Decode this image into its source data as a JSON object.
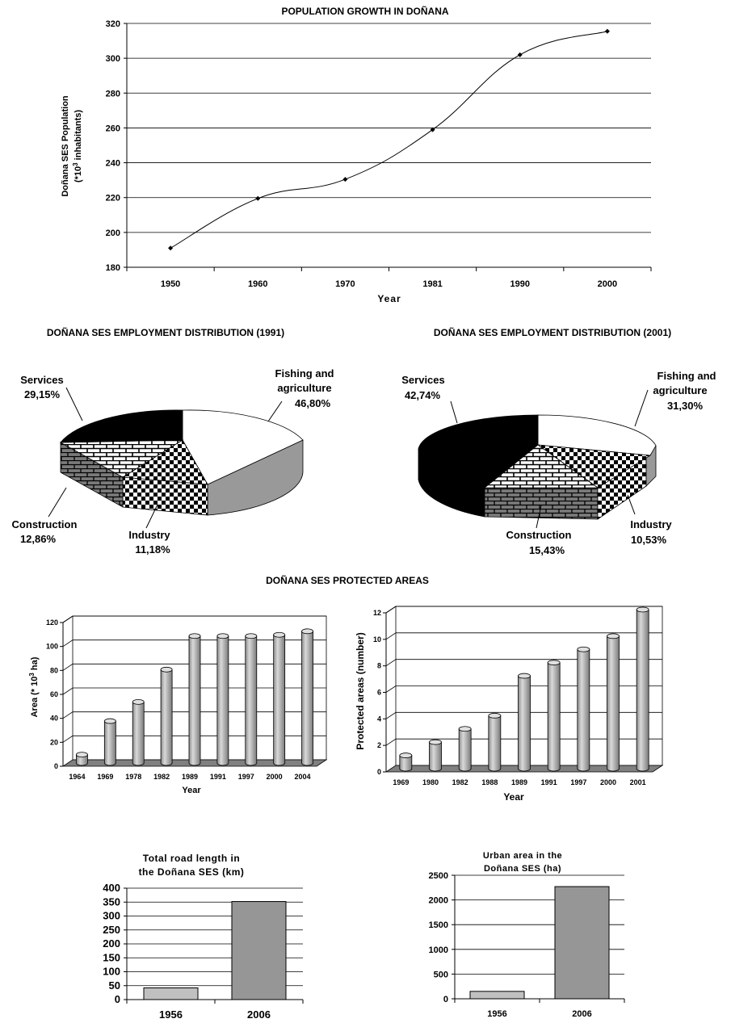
{
  "chart_data": [
    {
      "type": "line",
      "title": "POPULATION GROWTH IN DOÑANA",
      "xlabel": "Year",
      "ylabel_line1": "Doñana SES Population",
      "ylabel_line2": "(*10³ inhabitants)",
      "x": [
        "1950",
        "1960",
        "1970",
        "1981",
        "1990",
        "2000"
      ],
      "values": [
        191,
        219.5,
        230.5,
        259,
        302,
        315.5
      ],
      "ylim": [
        180,
        320
      ],
      "yticks": [
        180,
        200,
        220,
        240,
        260,
        280,
        300,
        320
      ],
      "grid": true
    },
    {
      "type": "pie",
      "title": "DOÑANA SES EMPLOYMENT DISTRIBUTION (1991)",
      "slices": [
        {
          "label": "Fishing and agriculture",
          "value": 46.8,
          "pct": "46,80%",
          "color": "#ffffff"
        },
        {
          "label": "Industry",
          "value": 11.18,
          "pct": "11,18%",
          "color": "#000000"
        },
        {
          "label": "Construction",
          "value": 12.86,
          "pct": "12,86%",
          "color": "#808080"
        },
        {
          "label": "Services",
          "value": 29.15,
          "pct": "29,15%",
          "color": "#000000"
        }
      ]
    },
    {
      "type": "pie",
      "title": "DOÑANA SES EMPLOYMENT DISTRIBUTION (2001)",
      "slices": [
        {
          "label": "Fishing and agriculture",
          "value": 31.3,
          "pct": "31,30%",
          "color": "#ffffff"
        },
        {
          "label": "Industry",
          "value": 10.53,
          "pct": "10,53%",
          "color": "#000000"
        },
        {
          "label": "Construction",
          "value": 15.43,
          "pct": "15,43%",
          "color": "#808080"
        },
        {
          "label": "Services",
          "value": 42.74,
          "pct": "42,74%",
          "color": "#000000"
        }
      ]
    },
    {
      "type": "bar",
      "section_title": "DOÑANA SES PROTECTED AREAS",
      "xlabel": "Year",
      "ylabel": "Area (* 10³ ha)",
      "categories": [
        "1964",
        "1969",
        "1978",
        "1982",
        "1989",
        "1991",
        "1997",
        "2000",
        "2004"
      ],
      "values": [
        7,
        35,
        51,
        78,
        106,
        106,
        106,
        107,
        110
      ],
      "ylim": [
        0,
        120
      ],
      "yticks": [
        0,
        20,
        40,
        60,
        80,
        100,
        120
      ],
      "grid": true
    },
    {
      "type": "bar",
      "xlabel": "Year",
      "ylabel": "Protected areas (number)",
      "categories": [
        "1969",
        "1980",
        "1982",
        "1988",
        "1989",
        "1991",
        "1997",
        "2000",
        "2001"
      ],
      "values": [
        1,
        2,
        3,
        4,
        7,
        8,
        9,
        10,
        12
      ],
      "ylim": [
        0,
        12
      ],
      "yticks": [
        0,
        2,
        4,
        6,
        8,
        10,
        12
      ],
      "grid": true
    },
    {
      "type": "bar",
      "title_line1": "Total road length in",
      "title_line2": "the Doñana SES (km)",
      "categories": [
        "1956",
        "2006"
      ],
      "values": [
        42,
        352
      ],
      "ylim": [
        0,
        400
      ],
      "yticks": [
        0,
        50,
        100,
        150,
        200,
        250,
        300,
        350,
        400
      ],
      "colors": [
        "#c0c0c0",
        "#969696"
      ],
      "grid": true
    },
    {
      "type": "bar",
      "title_line1": "Urban area in the",
      "title_line2": "Doñana SES (ha)",
      "categories": [
        "1956",
        "2006"
      ],
      "values": [
        150,
        2270
      ],
      "ylim": [
        0,
        2500
      ],
      "yticks": [
        0,
        500,
        1000,
        1500,
        2000,
        2500
      ],
      "colors": [
        "#c0c0c0",
        "#969696"
      ],
      "grid": true
    }
  ]
}
